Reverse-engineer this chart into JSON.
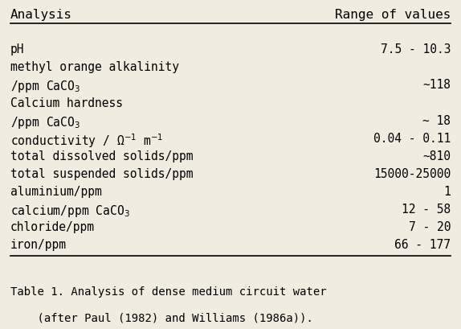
{
  "header_left": "Analysis",
  "header_right": "Range of values",
  "rows": [
    [
      "pH",
      "7.5 - 10.3"
    ],
    [
      "methyl orange alkalinity",
      ""
    ],
    [
      "/ppm CaCO$_3$",
      "~118"
    ],
    [
      "Calcium hardness",
      ""
    ],
    [
      "/ppm CaCO$_3$",
      "~ 18"
    ],
    [
      "conductivity / Ω$^{-1}$ m$^{-1}$",
      "0.04 - 0.11"
    ],
    [
      "total dissolved solids/ppm",
      "~810"
    ],
    [
      "total suspended solids/ppm",
      "15000-25000"
    ],
    [
      "aluminium/ppm",
      "1"
    ],
    [
      "calcium/ppm CaCO$_3$",
      "12 - 58"
    ],
    [
      "chloride/ppm",
      "7 - 20"
    ],
    [
      "iron/ppm",
      "66 - 177"
    ]
  ],
  "caption_line1": "Table 1. Analysis of dense medium circuit water",
  "caption_line2": "    (after Paul (1982) and Williams (1986a)).",
  "bg_color": "#f0ece0",
  "font_size": 10.5,
  "caption_font_size": 10.0,
  "header_font_size": 11.5
}
